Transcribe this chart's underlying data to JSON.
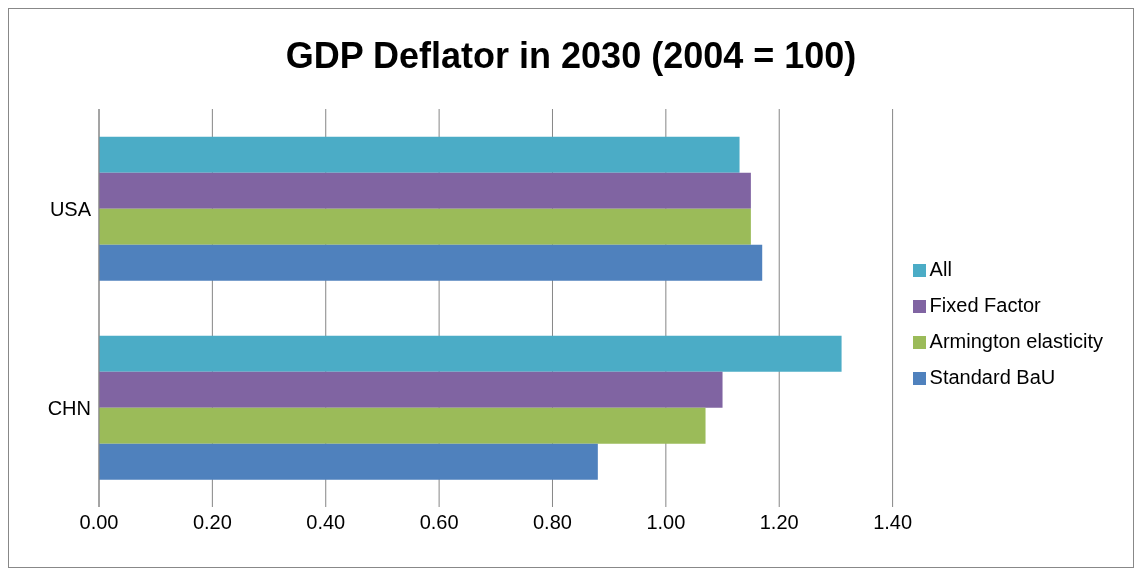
{
  "chart_data": {
    "type": "bar",
    "orientation": "horizontal",
    "title": "GDP Deflator in 2030 (2004 = 100)",
    "categories": [
      "USA",
      "CHN"
    ],
    "series": [
      {
        "name": "All",
        "color": "#4bacc6",
        "values": [
          1.13,
          1.31
        ]
      },
      {
        "name": "Fixed Factor",
        "color": "#8064a2",
        "values": [
          1.15,
          1.1
        ]
      },
      {
        "name": "Armington elasticity",
        "color": "#9bbb59",
        "values": [
          1.15,
          1.07
        ]
      },
      {
        "name": "Standard BaU",
        "color": "#4f81bd",
        "values": [
          1.17,
          0.88
        ]
      }
    ],
    "xlim": [
      0,
      1.4
    ],
    "xticks": [
      {
        "value": 0,
        "label": "0.00"
      },
      {
        "value": 0.2,
        "label": "0.20"
      },
      {
        "value": 0.4,
        "label": "0.40"
      },
      {
        "value": 0.6,
        "label": "0.60"
      },
      {
        "value": 0.8,
        "label": "0.80"
      },
      {
        "value": 1.0,
        "label": "1.00"
      },
      {
        "value": 1.2,
        "label": "1.20"
      },
      {
        "value": 1.4,
        "label": "1.40"
      }
    ],
    "grid": "x",
    "legend": "right"
  }
}
